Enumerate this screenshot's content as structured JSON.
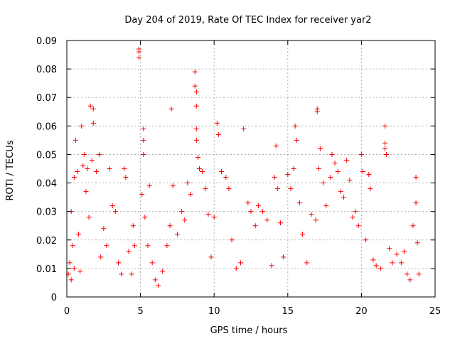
{
  "chart_data": {
    "type": "scatter",
    "title": "Day 204 of 2019, Rate Of TEC Index for receiver yar2",
    "xlabel": "GPS time / hours",
    "ylabel": "ROTI / TECUs",
    "xlim": [
      0,
      25
    ],
    "ylim": [
      0,
      0.09
    ],
    "xticks": [
      0,
      5,
      10,
      15,
      20,
      25
    ],
    "yticks": [
      0,
      0.01,
      0.02,
      0.03,
      0.04,
      0.05,
      0.06,
      0.07,
      0.08,
      0.09
    ],
    "xtick_labels": [
      "0",
      "5",
      "10",
      "15",
      "20",
      "25"
    ],
    "ytick_labels": [
      "0",
      "0.01",
      "0.02",
      "0.03",
      "0.04",
      "0.05",
      "0.06",
      "0.07",
      "0.08",
      "0.09"
    ],
    "grid": true,
    "marker": "+",
    "marker_color": "#ff0000",
    "series": [
      {
        "name": "ROTI",
        "points": [
          [
            0.1,
            0.008
          ],
          [
            0.2,
            0.012
          ],
          [
            0.3,
            0.03
          ],
          [
            0.3,
            0.006
          ],
          [
            0.4,
            0.018
          ],
          [
            0.5,
            0.042
          ],
          [
            0.5,
            0.01
          ],
          [
            0.6,
            0.055
          ],
          [
            0.7,
            0.044
          ],
          [
            0.8,
            0.022
          ],
          [
            0.9,
            0.009
          ],
          [
            1.0,
            0.06
          ],
          [
            1.1,
            0.046
          ],
          [
            1.2,
            0.05
          ],
          [
            1.3,
            0.037
          ],
          [
            1.4,
            0.045
          ],
          [
            1.5,
            0.028
          ],
          [
            1.6,
            0.067
          ],
          [
            1.7,
            0.048
          ],
          [
            1.8,
            0.066
          ],
          [
            1.8,
            0.061
          ],
          [
            2.0,
            0.044
          ],
          [
            2.2,
            0.05
          ],
          [
            2.3,
            0.014
          ],
          [
            2.5,
            0.024
          ],
          [
            2.7,
            0.018
          ],
          [
            2.9,
            0.045
          ],
          [
            3.1,
            0.032
          ],
          [
            3.3,
            0.03
          ],
          [
            3.5,
            0.012
          ],
          [
            3.7,
            0.008
          ],
          [
            3.9,
            0.045
          ],
          [
            4.0,
            0.042
          ],
          [
            4.2,
            0.016
          ],
          [
            4.4,
            0.008
          ],
          [
            4.5,
            0.025
          ],
          [
            4.6,
            0.018
          ],
          [
            4.9,
            0.087
          ],
          [
            4.9,
            0.086
          ],
          [
            4.9,
            0.084
          ],
          [
            5.1,
            0.036
          ],
          [
            5.2,
            0.059
          ],
          [
            5.2,
            0.055
          ],
          [
            5.2,
            0.05
          ],
          [
            5.3,
            0.028
          ],
          [
            5.5,
            0.018
          ],
          [
            5.6,
            0.039
          ],
          [
            5.8,
            0.012
          ],
          [
            6.0,
            0.006
          ],
          [
            6.2,
            0.004
          ],
          [
            6.5,
            0.009
          ],
          [
            6.8,
            0.018
          ],
          [
            7.0,
            0.025
          ],
          [
            7.1,
            0.066
          ],
          [
            7.2,
            0.039
          ],
          [
            7.5,
            0.022
          ],
          [
            7.8,
            0.03
          ],
          [
            8.0,
            0.027
          ],
          [
            8.2,
            0.04
          ],
          [
            8.4,
            0.036
          ],
          [
            8.7,
            0.079
          ],
          [
            8.7,
            0.074
          ],
          [
            8.8,
            0.072
          ],
          [
            8.8,
            0.067
          ],
          [
            8.8,
            0.059
          ],
          [
            8.8,
            0.055
          ],
          [
            8.9,
            0.049
          ],
          [
            9.0,
            0.045
          ],
          [
            9.2,
            0.044
          ],
          [
            9.4,
            0.038
          ],
          [
            9.6,
            0.029
          ],
          [
            9.8,
            0.014
          ],
          [
            10.0,
            0.028
          ],
          [
            10.2,
            0.061
          ],
          [
            10.3,
            0.057
          ],
          [
            10.5,
            0.044
          ],
          [
            10.8,
            0.042
          ],
          [
            11.0,
            0.038
          ],
          [
            11.2,
            0.02
          ],
          [
            11.5,
            0.01
          ],
          [
            11.8,
            0.012
          ],
          [
            12.0,
            0.059
          ],
          [
            12.3,
            0.033
          ],
          [
            12.5,
            0.03
          ],
          [
            12.8,
            0.025
          ],
          [
            13.0,
            0.032
          ],
          [
            13.3,
            0.03
          ],
          [
            13.6,
            0.027
          ],
          [
            13.9,
            0.011
          ],
          [
            14.1,
            0.042
          ],
          [
            14.2,
            0.053
          ],
          [
            14.3,
            0.038
          ],
          [
            14.5,
            0.026
          ],
          [
            14.7,
            0.014
          ],
          [
            15.0,
            0.043
          ],
          [
            15.2,
            0.038
          ],
          [
            15.4,
            0.045
          ],
          [
            15.5,
            0.06
          ],
          [
            15.6,
            0.055
          ],
          [
            15.8,
            0.033
          ],
          [
            16.0,
            0.022
          ],
          [
            16.3,
            0.012
          ],
          [
            16.6,
            0.029
          ],
          [
            16.9,
            0.027
          ],
          [
            17.0,
            0.066
          ],
          [
            17.0,
            0.065
          ],
          [
            17.1,
            0.045
          ],
          [
            17.2,
            0.052
          ],
          [
            17.4,
            0.04
          ],
          [
            17.6,
            0.032
          ],
          [
            17.9,
            0.042
          ],
          [
            18.0,
            0.05
          ],
          [
            18.2,
            0.047
          ],
          [
            18.4,
            0.044
          ],
          [
            18.6,
            0.037
          ],
          [
            18.8,
            0.035
          ],
          [
            19.0,
            0.048
          ],
          [
            19.2,
            0.041
          ],
          [
            19.4,
            0.028
          ],
          [
            19.6,
            0.03
          ],
          [
            19.8,
            0.025
          ],
          [
            20.0,
            0.05
          ],
          [
            20.1,
            0.044
          ],
          [
            20.3,
            0.02
          ],
          [
            20.5,
            0.043
          ],
          [
            20.6,
            0.038
          ],
          [
            20.8,
            0.013
          ],
          [
            21.0,
            0.011
          ],
          [
            21.3,
            0.01
          ],
          [
            21.6,
            0.06
          ],
          [
            21.6,
            0.054
          ],
          [
            21.6,
            0.052
          ],
          [
            21.7,
            0.05
          ],
          [
            21.9,
            0.017
          ],
          [
            22.1,
            0.012
          ],
          [
            22.4,
            0.015
          ],
          [
            22.7,
            0.012
          ],
          [
            22.9,
            0.016
          ],
          [
            23.1,
            0.008
          ],
          [
            23.3,
            0.006
          ],
          [
            23.5,
            0.025
          ],
          [
            23.7,
            0.033
          ],
          [
            23.7,
            0.042
          ],
          [
            23.8,
            0.019
          ],
          [
            23.9,
            0.008
          ]
        ]
      }
    ]
  }
}
